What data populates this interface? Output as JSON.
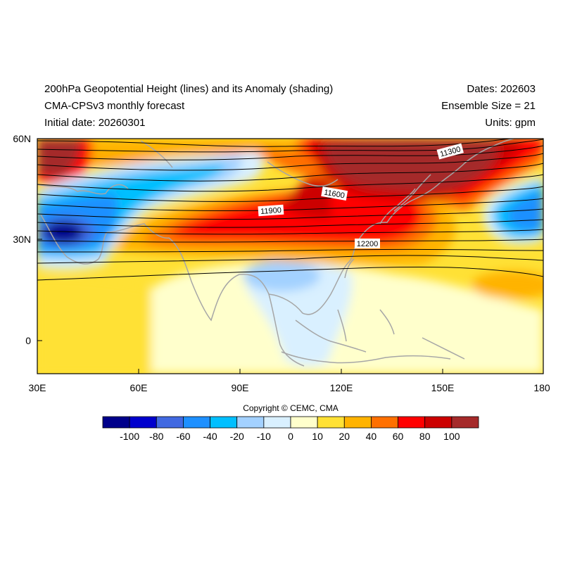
{
  "header": {
    "title_line1": "200hPa Geopotential Height (lines) and its Anomaly (shading)",
    "title_line2": "CMA-CPSv3 monthly forecast",
    "title_line3": "Initial date: 20260301",
    "dates": "Dates: 202603",
    "ensemble": "Ensemble Size = 21",
    "units": "Units: gpm"
  },
  "axes": {
    "lat_ticks": [
      "60N",
      "30N",
      "0"
    ],
    "lon_ticks": [
      "30E",
      "60E",
      "90E",
      "120E",
      "150E",
      "180"
    ]
  },
  "contour_labels": [
    "11300",
    "11600",
    "11900",
    "12200"
  ],
  "copyright": "Copyright © CEMC, CMA",
  "colorbar": {
    "labels": [
      "-100",
      "-80",
      "-60",
      "-40",
      "-20",
      "-10",
      "0",
      "10",
      "20",
      "40",
      "60",
      "80",
      "100"
    ],
    "colors": [
      "#00008b",
      "#0000cd",
      "#4169e1",
      "#1e90ff",
      "#00bfff",
      "#a3d1ff",
      "#d9f0ff",
      "#ffffcc",
      "#ffe135",
      "#ffb300",
      "#ff7000",
      "#ff0000",
      "#cc0000",
      "#a52a2a"
    ]
  },
  "palette": {
    "map_background": "#ffe135",
    "coastline": "#a6a6a6",
    "contour": "#000000"
  }
}
